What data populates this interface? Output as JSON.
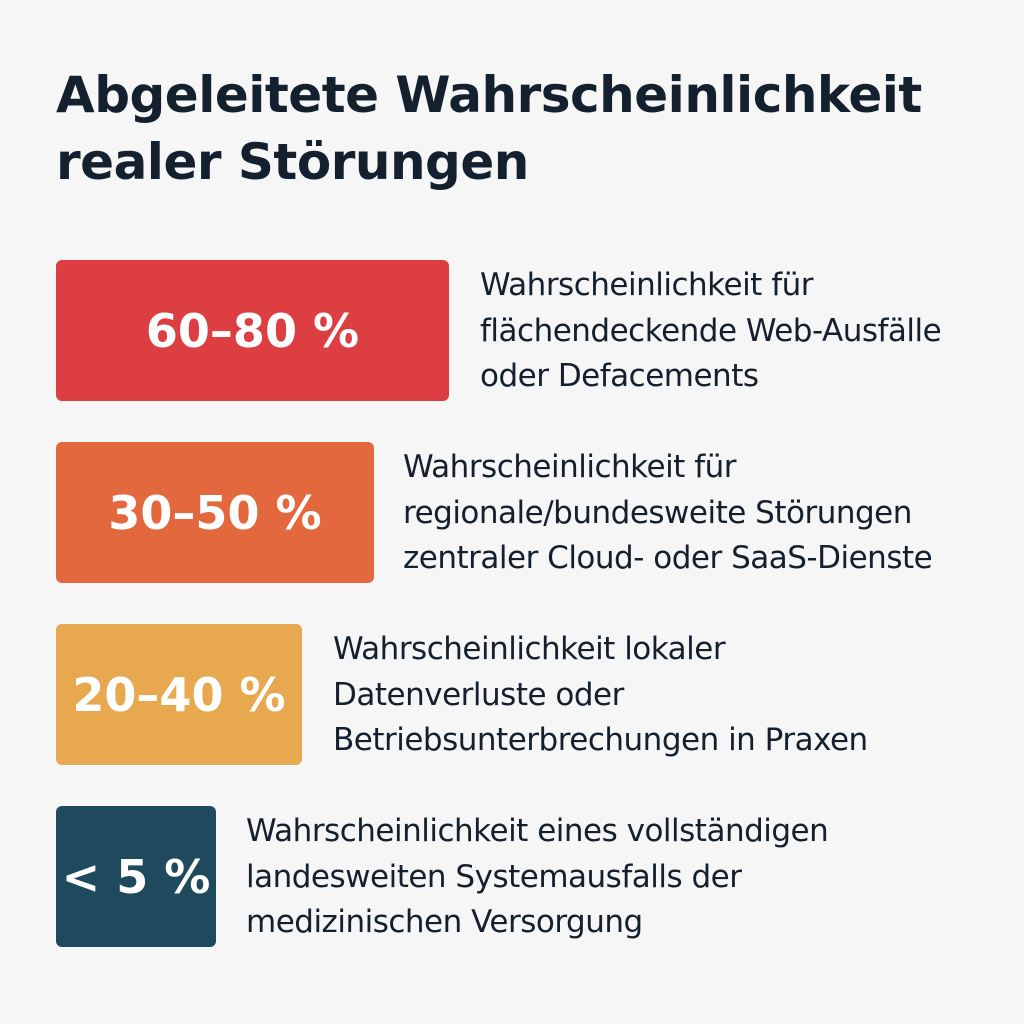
{
  "header": {
    "title_lines": [
      "Abgeleitete Wahrscheinlichkeit",
      "realer Störungen"
    ]
  },
  "items": [
    {
      "label": "60–80 %",
      "description_lines": [
        "Wahrscheinlichkeit für",
        "flächendeckende Web-Ausfälle",
        "oder Defacements"
      ]
    },
    {
      "label": "30–50 %",
      "description_lines": [
        "Wahrscheinlichkeit für",
        "regionale/bundesweite Störungen",
        "zentraler Cloud- oder SaaS-Dienste"
      ]
    },
    {
      "label": "20–40 %",
      "description_lines": [
        "Wahrscheinlichkeit lokaler",
        "Datenverluste oder",
        "Betriebsunterbrechungen in Praxen"
      ]
    },
    {
      "label": "< 5 %",
      "description_lines": [
        "Wahrscheinlichkeit eines vollständigen",
        "landesweiten Systemausfalls der",
        "medizinischen Versorgung"
      ]
    }
  ]
}
